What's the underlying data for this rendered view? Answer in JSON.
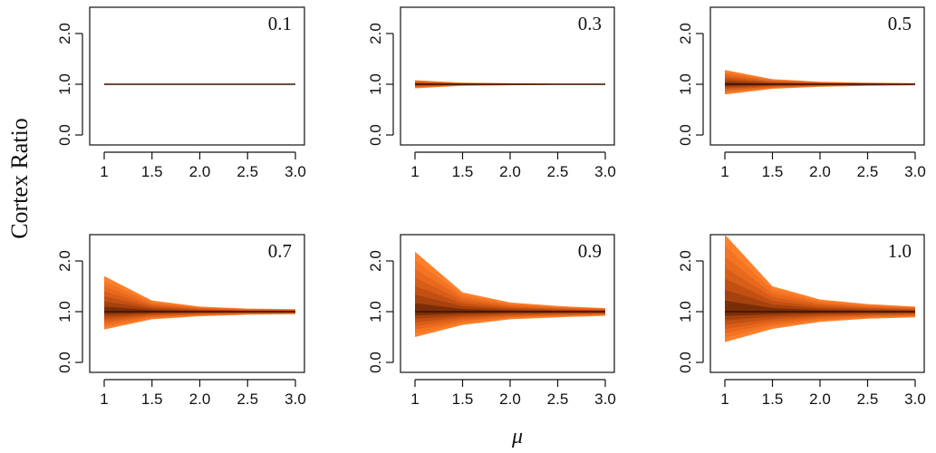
{
  "figure": {
    "ylabel": "Cortex Ratio",
    "xlabel": "μ"
  },
  "chart_data": {
    "type": "area",
    "x_ticks": [
      "1",
      "1.5",
      "2.0",
      "2.5",
      "3.0"
    ],
    "y_ticks": [
      "0.0",
      "1.0",
      "2.0"
    ],
    "xlim": [
      1,
      3
    ],
    "ylim": [
      0,
      2.5
    ],
    "x": [
      1,
      1.5,
      2,
      2.5,
      3
    ],
    "band_colors": [
      "#ff7f2a",
      "#f47424",
      "#e8691e",
      "#d85d18",
      "#c35012",
      "#a6420d",
      "#7a2e08"
    ],
    "center_color": "#3d1204",
    "panels": [
      {
        "label": "0.1",
        "upper": [
          1.01,
          1.005,
          1.003,
          1.002,
          1.001
        ],
        "lower": [
          0.99,
          0.995,
          0.997,
          0.998,
          0.999
        ]
      },
      {
        "label": "0.3",
        "upper": [
          1.08,
          1.03,
          1.02,
          1.01,
          1.01
        ],
        "lower": [
          0.92,
          0.97,
          0.98,
          0.99,
          0.99
        ]
      },
      {
        "label": "0.5",
        "upper": [
          1.28,
          1.1,
          1.05,
          1.03,
          1.02
        ],
        "lower": [
          0.8,
          0.91,
          0.95,
          0.97,
          0.98
        ]
      },
      {
        "label": "0.7",
        "upper": [
          1.7,
          1.22,
          1.1,
          1.06,
          1.05
        ],
        "lower": [
          0.65,
          0.85,
          0.91,
          0.94,
          0.95
        ]
      },
      {
        "label": "0.9",
        "upper": [
          2.18,
          1.38,
          1.18,
          1.11,
          1.07
        ],
        "lower": [
          0.5,
          0.74,
          0.85,
          0.89,
          0.92
        ]
      },
      {
        "label": "1.0",
        "upper": [
          2.52,
          1.5,
          1.24,
          1.15,
          1.1
        ],
        "lower": [
          0.4,
          0.66,
          0.8,
          0.86,
          0.89
        ]
      }
    ]
  }
}
